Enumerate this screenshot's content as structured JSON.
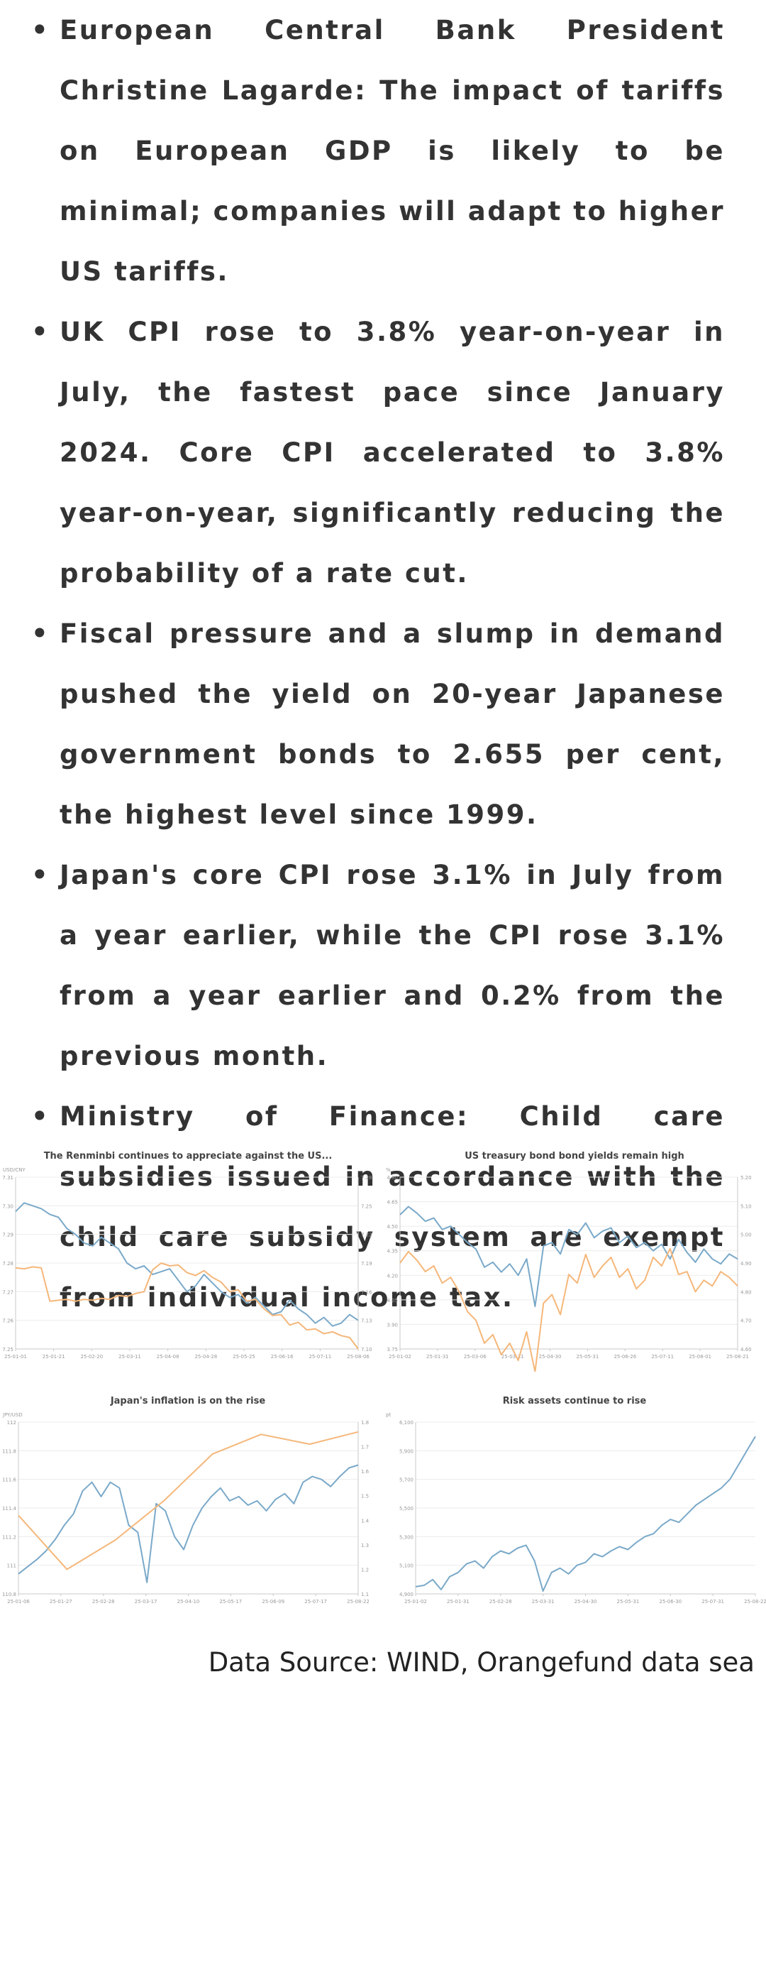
{
  "news": [
    "European Central Bank President Christine Lagarde: The impact of tariffs on European GDP is likely to be minimal; companies will adapt to higher US tariffs.",
    "UK CPI rose to 3.8% year-on-year in July, the fastest pace since January 2024. Core CPI accelerated to 3.8% year-on-year, significantly reducing the probability of a rate cut.",
    "Fiscal pressure and a slump in demand pushed the yield on 20-year Japanese government bonds to 2.655 per cent, the highest level since 1999.",
    "Japan's core CPI rose 3.1% in July from a year earlier, while the CPI rose 3.1% from a year earlier and 0.2% from the previous month.",
    "Ministry of Finance: Child care subsidies issued in accordance with the child care subsidy system are exempt from individual income tax."
  ],
  "colors": {
    "blue": "#7aa9c9",
    "orange": "#f5b77a",
    "grid": "#ececec",
    "axis": "#c8c8c8",
    "tick": "#9a9a9a",
    "title": "#444444"
  },
  "chart_data": [
    {
      "type": "line",
      "title": "The Renminbi continues to appreciate against the US...",
      "y_left_label": "USD/CNY",
      "x_ticks": [
        "25-01-01",
        "25-01-21",
        "25-02-20",
        "25-03-11",
        "25-04-08",
        "25-04-28",
        "25-05-25",
        "25-06-16",
        "25-07-11",
        "25-08-06"
      ],
      "y_left_ticks": [
        "7.31",
        "7.30",
        "7.29",
        "7.28",
        "7.27",
        "7.26",
        "7.25"
      ],
      "y_right_ticks": [
        "7.28",
        "7.25",
        "7.22",
        "7.19",
        "7.16",
        "7.13",
        "7.10"
      ],
      "series": [
        {
          "values": [
            7.298,
            7.301,
            7.3,
            7.299,
            7.297,
            7.296,
            7.292,
            7.29,
            7.287,
            7.286,
            7.289,
            7.287,
            7.285,
            7.28,
            7.278,
            7.279,
            7.276,
            7.277,
            7.278,
            7.274,
            7.27,
            7.272,
            7.276,
            7.273,
            7.27,
            7.268,
            7.269,
            7.266,
            7.268,
            7.265,
            7.262,
            7.263,
            7.267,
            7.264,
            7.262,
            7.259,
            7.261,
            7.258,
            7.259,
            7.262,
            7.26
          ]
        },
        {
          "values": [
            7.185,
            7.184,
            7.186,
            7.185,
            7.15,
            7.151,
            7.152,
            7.15,
            7.152,
            7.151,
            7.153,
            7.152,
            7.156,
            7.155,
            7.158,
            7.16,
            7.183,
            7.19,
            7.187,
            7.188,
            7.18,
            7.177,
            7.182,
            7.175,
            7.17,
            7.16,
            7.162,
            7.15,
            7.152,
            7.142,
            7.135,
            7.136,
            7.125,
            7.128,
            7.12,
            7.121,
            7.116,
            7.118,
            7.114,
            7.112,
            7.1
          ]
        }
      ]
    },
    {
      "type": "line",
      "title": "US treasury bond bond yields remain high",
      "y_left_label": "%",
      "x_ticks": [
        "25-01-02",
        "25-01-31",
        "25-03-06",
        "25-03-31",
        "25-04-30",
        "25-05-31",
        "25-06-26",
        "25-07-11",
        "25-08-01",
        "25-08-21"
      ],
      "y_left_ticks": [
        "4.80",
        "4.65",
        "4.50",
        "4.35",
        "4.20",
        "4.05",
        "3.90",
        "3.75"
      ],
      "y_right_ticks": [
        "5.20",
        "5.10",
        "5.00",
        "4.90",
        "4.80",
        "4.70",
        "4.60"
      ],
      "series": [
        {
          "values": [
            4.57,
            4.62,
            4.58,
            4.53,
            4.55,
            4.48,
            4.5,
            4.45,
            4.4,
            4.36,
            4.25,
            4.28,
            4.22,
            4.27,
            4.2,
            4.3,
            4.01,
            4.38,
            4.4,
            4.33,
            4.48,
            4.45,
            4.52,
            4.43,
            4.47,
            4.49,
            4.4,
            4.44,
            4.37,
            4.4,
            4.35,
            4.39,
            4.3,
            4.42,
            4.34,
            4.28,
            4.36,
            4.3,
            4.27,
            4.33,
            4.3
          ]
        },
        {
          "values": [
            4.9,
            4.94,
            4.91,
            4.87,
            4.89,
            4.83,
            4.85,
            4.8,
            4.73,
            4.7,
            4.62,
            4.65,
            4.58,
            4.62,
            4.56,
            4.66,
            4.52,
            4.76,
            4.79,
            4.72,
            4.86,
            4.83,
            4.93,
            4.85,
            4.89,
            4.92,
            4.85,
            4.88,
            4.81,
            4.84,
            4.92,
            4.89,
            4.95,
            4.86,
            4.87,
            4.8,
            4.84,
            4.82,
            4.87,
            4.85,
            4.82
          ]
        }
      ]
    },
    {
      "type": "line",
      "title": "Japan's inflation is on the rise",
      "y_left_label": "JPY/USD",
      "x_ticks": [
        "25-01-06",
        "25-01-27",
        "25-02-28",
        "25-03-17",
        "25-04-10",
        "25-05-17",
        "25-06-09",
        "25-07-17",
        "25-08-22"
      ],
      "y_left_ticks": [
        "112",
        "111.8",
        "111.6",
        "111.4",
        "111.2",
        "111",
        "110.8"
      ],
      "y_right_ticks": [
        "1.8",
        "1.7",
        "1.6",
        "1.5",
        "1.4",
        "1.3",
        "1.2",
        "1.1"
      ],
      "series": [
        {
          "values": [
            110.94,
            110.99,
            111.04,
            111.1,
            111.18,
            111.28,
            111.36,
            111.52,
            111.58,
            111.48,
            111.58,
            111.54,
            111.28,
            111.23,
            110.88,
            111.43,
            111.38,
            111.2,
            111.11,
            111.28,
            111.4,
            111.48,
            111.54,
            111.45,
            111.48,
            111.42,
            111.45,
            111.38,
            111.46,
            111.5,
            111.43,
            111.58,
            111.62,
            111.6,
            111.55,
            111.62,
            111.68,
            111.7
          ]
        },
        {
          "values": [
            1.42,
            1.2,
            1.32,
            1.48,
            1.67,
            1.75,
            1.71,
            1.76
          ]
        }
      ]
    },
    {
      "type": "line",
      "title": "Risk assets continue to rise",
      "y_left_label": "pt",
      "x_ticks": [
        "25-01-02",
        "25-01-31",
        "25-02-28",
        "25-03-31",
        "25-04-30",
        "25-05-31",
        "25-06-30",
        "25-07-31",
        "25-08-22"
      ],
      "y_left_ticks": [
        "6,100",
        "5,900",
        "5,700",
        "5,500",
        "5,300",
        "5,100",
        "4,900"
      ],
      "series": [
        {
          "values": [
            4950,
            4960,
            5000,
            4930,
            5020,
            5050,
            5110,
            5130,
            5080,
            5160,
            5200,
            5180,
            5220,
            5240,
            5130,
            4920,
            5050,
            5080,
            5040,
            5100,
            5120,
            5180,
            5160,
            5200,
            5230,
            5210,
            5260,
            5300,
            5320,
            5380,
            5420,
            5400,
            5460,
            5520,
            5560,
            5600,
            5640,
            5700,
            5800,
            5900,
            6000
          ]
        }
      ]
    }
  ],
  "source": "Data Source: WIND, Orangefund data sea"
}
